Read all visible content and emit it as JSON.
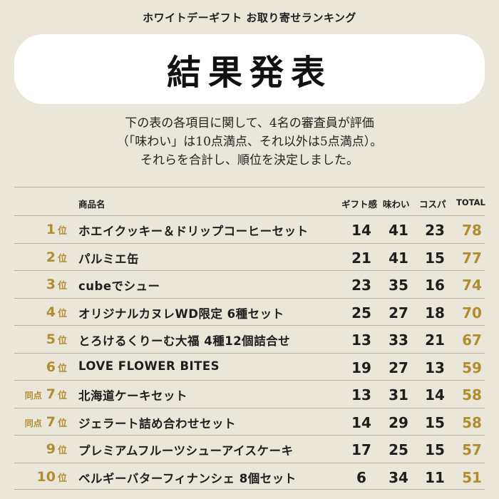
{
  "header": {
    "subtitle": "ホワイトデーギフト お取り寄せランキング",
    "title": "結果発表"
  },
  "description": [
    "下の表の各項目に関して、4名の審査員が評価",
    "（「味わい」は10点満点、それ以外は5点満点）。",
    "それらを合計し、順位を決定しました。"
  ],
  "columns": {
    "name": "商品名",
    "gift": "ギフト感",
    "taste": "味わい",
    "cospa": "コスパ",
    "total": "TOTAL"
  },
  "colors": {
    "accent": "#b08d2e",
    "background": "#ebe6da"
  },
  "rows": [
    {
      "tie": "",
      "rank": "1",
      "unit": "位",
      "name": "ホエイクッキー＆ドリップコーヒーセット",
      "gift": "14",
      "taste": "41",
      "cospa": "23",
      "total": "78"
    },
    {
      "tie": "",
      "rank": "2",
      "unit": "位",
      "name": "パルミエ缶",
      "gift": "21",
      "taste": "41",
      "cospa": "15",
      "total": "77"
    },
    {
      "tie": "",
      "rank": "3",
      "unit": "位",
      "name": "cubeでシュー",
      "gift": "23",
      "taste": "35",
      "cospa": "16",
      "total": "74"
    },
    {
      "tie": "",
      "rank": "4",
      "unit": "位",
      "name": "オリジナルカヌレWD限定 6種セット",
      "gift": "25",
      "taste": "27",
      "cospa": "18",
      "total": "70"
    },
    {
      "tie": "",
      "rank": "5",
      "unit": "位",
      "name": "とろけるくりーむ大福 4種12個詰合せ",
      "gift": "13",
      "taste": "33",
      "cospa": "21",
      "total": "67"
    },
    {
      "tie": "",
      "rank": "6",
      "unit": "位",
      "name": "LOVE FLOWER BITES",
      "gift": "19",
      "taste": "27",
      "cospa": "13",
      "total": "59"
    },
    {
      "tie": "同点",
      "rank": "7",
      "unit": "位",
      "name": "北海道ケーキセット",
      "gift": "13",
      "taste": "31",
      "cospa": "14",
      "total": "58"
    },
    {
      "tie": "同点",
      "rank": "7",
      "unit": "位",
      "name": "ジェラート詰め合わせセット",
      "gift": "14",
      "taste": "29",
      "cospa": "15",
      "total": "58"
    },
    {
      "tie": "",
      "rank": "9",
      "unit": "位",
      "name": "プレミアムフルーツシューアイスケーキ",
      "gift": "17",
      "taste": "25",
      "cospa": "15",
      "total": "57"
    },
    {
      "tie": "",
      "rank": "10",
      "unit": "位",
      "name": "ベルギーバターフィナンシェ 8個セット",
      "gift": "6",
      "taste": "34",
      "cospa": "11",
      "total": "51"
    }
  ]
}
